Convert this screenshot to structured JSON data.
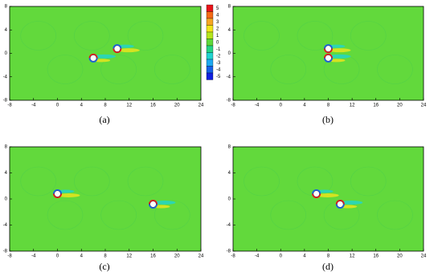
{
  "chart_data": [
    {
      "type": "contour",
      "label": "(a)",
      "xlim": [
        -8,
        24
      ],
      "ylim": [
        -8,
        8
      ],
      "xticks": [
        -8,
        -4,
        0,
        4,
        8,
        12,
        16,
        20,
        24
      ],
      "yticks": [
        -8,
        -4,
        0,
        4,
        8
      ],
      "x": [
        6,
        10
      ],
      "values": [
        -0.8,
        0.8
      ],
      "colorbar": {
        "levels": [
          5,
          4,
          3,
          2,
          1,
          0,
          -1,
          -2,
          -3,
          -4,
          -5
        ],
        "colors": [
          "#e8141a",
          "#f46a16",
          "#f5a623",
          "#f1e51a",
          "#b5e51d",
          "#5fd83a",
          "#25d484",
          "#20d4d0",
          "#1da8f0",
          "#1560e8",
          "#1020e0"
        ]
      }
    },
    {
      "type": "contour",
      "label": "(b)",
      "xlim": [
        -8,
        24
      ],
      "ylim": [
        -8,
        8
      ],
      "xticks": [
        -8,
        -4,
        0,
        4,
        8,
        12,
        16,
        20,
        24
      ],
      "yticks": [
        -8,
        -4,
        0,
        4,
        8
      ],
      "x": [
        8,
        8
      ],
      "values": [
        0.8,
        -0.8
      ]
    },
    {
      "type": "contour",
      "label": "(c)",
      "xlim": [
        -8,
        24
      ],
      "ylim": [
        -8,
        8
      ],
      "xticks": [
        -8,
        -4,
        0,
        4,
        8,
        12,
        16,
        20,
        24
      ],
      "yticks": [
        -8,
        -4,
        0,
        4,
        8
      ],
      "x": [
        0,
        16
      ],
      "values": [
        0.8,
        -0.8
      ]
    },
    {
      "type": "contour",
      "label": "(d)",
      "xlim": [
        -8,
        24
      ],
      "ylim": [
        -8,
        8
      ],
      "xticks": [
        -8,
        -4,
        0,
        4,
        8,
        12,
        16,
        20,
        24
      ],
      "yticks": [
        -8,
        -4,
        0,
        4,
        8
      ],
      "x": [
        6,
        10
      ],
      "values": [
        0.8,
        -0.8
      ]
    }
  ]
}
